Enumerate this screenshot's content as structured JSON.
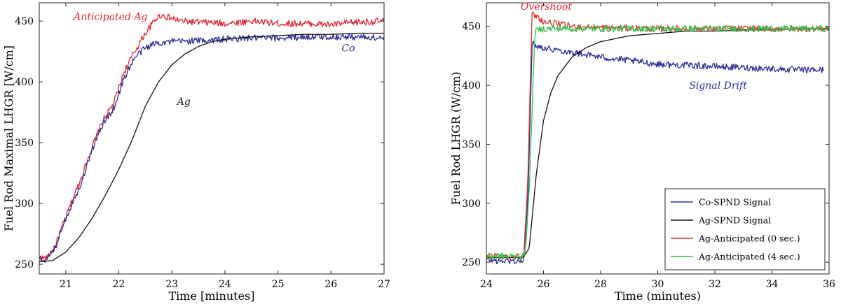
{
  "chart_data": [
    {
      "type": "line",
      "xlabel": "Time [minutes]",
      "ylabel": "Fuel Rod Maximal LHGR [W/cm]",
      "xlim": [
        20.5,
        27
      ],
      "ylim": [
        242,
        465
      ],
      "xticks": [
        21,
        22,
        23,
        24,
        25,
        26,
        27
      ],
      "yticks": [
        250,
        300,
        350,
        400,
        450
      ],
      "legend": null,
      "annotations": [
        {
          "text": "Anticipated Ag",
          "x": 21.15,
          "y": 451,
          "color": "#e8212d"
        },
        {
          "text": "Co",
          "x": 26.2,
          "y": 425,
          "color": "#2b2b99"
        },
        {
          "text": "Ag",
          "x": 23.1,
          "y": 381,
          "color": "#111111"
        }
      ],
      "series": [
        {
          "label": "Anticipated Ag",
          "color": "#e8212d",
          "x": [
            20.5,
            20.65,
            20.8,
            20.95,
            21.1,
            21.3,
            21.5,
            21.7,
            21.9,
            22.1,
            22.3,
            22.5,
            22.7,
            22.8,
            23.0,
            23.2,
            23.5,
            24.0,
            24.5,
            25.0,
            25.5,
            26.0,
            26.5,
            27.0
          ],
          "y": [
            255,
            255,
            265,
            283,
            300,
            322,
            347,
            368,
            382,
            408,
            425,
            440,
            452,
            455,
            452,
            450,
            449,
            448,
            450,
            448,
            448,
            447,
            449,
            450
          ]
        },
        {
          "label": "Co",
          "color": "#2b2b99",
          "x": [
            20.5,
            20.65,
            20.8,
            20.95,
            21.1,
            21.3,
            21.5,
            21.7,
            21.9,
            22.1,
            22.3,
            22.5,
            22.7,
            23.0,
            23.5,
            24.0,
            24.5,
            25.0,
            25.5,
            26.0,
            26.5,
            27.0
          ],
          "y": [
            254,
            254,
            263,
            283,
            298,
            318,
            345,
            365,
            378,
            403,
            420,
            428,
            432,
            433,
            434,
            435,
            436,
            436,
            437,
            437,
            437,
            436
          ]
        },
        {
          "label": "Ag",
          "color": "#111111",
          "x": [
            20.5,
            20.75,
            21.0,
            21.25,
            21.5,
            21.75,
            22.0,
            22.25,
            22.5,
            22.75,
            23.0,
            23.25,
            23.5,
            23.75,
            24.0,
            24.5,
            25.0,
            25.5,
            26.0,
            26.5,
            27.0
          ],
          "y": [
            252,
            253,
            260,
            272,
            288,
            307,
            328,
            352,
            380,
            400,
            414,
            423,
            429,
            433,
            435,
            437,
            438,
            439,
            439,
            440,
            440
          ]
        }
      ]
    },
    {
      "type": "line",
      "xlabel": "Time (minutes)",
      "ylabel": "Fuel Rod LHGR (W/cm)",
      "xlim": [
        24,
        36
      ],
      "ylim": [
        240,
        470
      ],
      "xticks": [
        24,
        26,
        28,
        30,
        32,
        34,
        36
      ],
      "yticks": [
        250,
        300,
        350,
        400,
        450
      ],
      "legend": "bottom-right",
      "annotations": [
        {
          "text": "Overshoot",
          "x": 25.2,
          "y": 464,
          "color": "#e8212d"
        },
        {
          "text": "Signal Drift",
          "x": 31.1,
          "y": 397,
          "color": "#2b2b99"
        }
      ],
      "series": [
        {
          "label": "Co-SPND Signal",
          "color": "#2b2b99",
          "x": [
            24.0,
            24.5,
            25.0,
            25.3,
            25.45,
            25.6,
            26.0,
            27.0,
            28.0,
            29.0,
            30.0,
            31.0,
            32.0,
            33.0,
            34.0,
            35.0,
            35.8
          ],
          "y": [
            252,
            251,
            251,
            251,
            300,
            435,
            432,
            428,
            424,
            421,
            418,
            417,
            416,
            415,
            414,
            413,
            413
          ]
        },
        {
          "label": "Ag-SPND Signal",
          "color": "#111111",
          "x": [
            24.0,
            25.0,
            25.3,
            25.5,
            25.75,
            26.0,
            26.25,
            26.5,
            27.0,
            27.5,
            28.0,
            29.0,
            30.0,
            31.0,
            32.0,
            33.0,
            34.0,
            35.0,
            36.0
          ],
          "y": [
            254,
            254,
            254,
            262,
            325,
            370,
            393,
            408,
            424,
            432,
            437,
            442,
            444,
            446,
            446,
            447,
            447,
            448,
            448
          ]
        },
        {
          "label": "Ag-Anticipated (0 sec.)",
          "color": "#d93a2f",
          "x": [
            24.0,
            25.0,
            25.3,
            25.45,
            25.6,
            25.8,
            26.0,
            26.5,
            27.0,
            28.0,
            30.0,
            32.0,
            34.0,
            36.0
          ],
          "y": [
            255,
            255,
            255,
            320,
            460,
            458,
            454,
            452,
            450,
            449,
            448,
            448,
            448,
            448
          ]
        },
        {
          "label": "Ag-Anticipated (4 sec.)",
          "color": "#2fc24a",
          "x": [
            24.0,
            25.0,
            25.35,
            25.5,
            25.7,
            26.0,
            26.5,
            27.0,
            28.0,
            30.0,
            32.0,
            34.0,
            36.0
          ],
          "y": [
            255,
            255,
            255,
            310,
            446,
            448,
            448,
            448,
            448,
            448,
            448,
            448,
            448
          ]
        }
      ]
    }
  ]
}
